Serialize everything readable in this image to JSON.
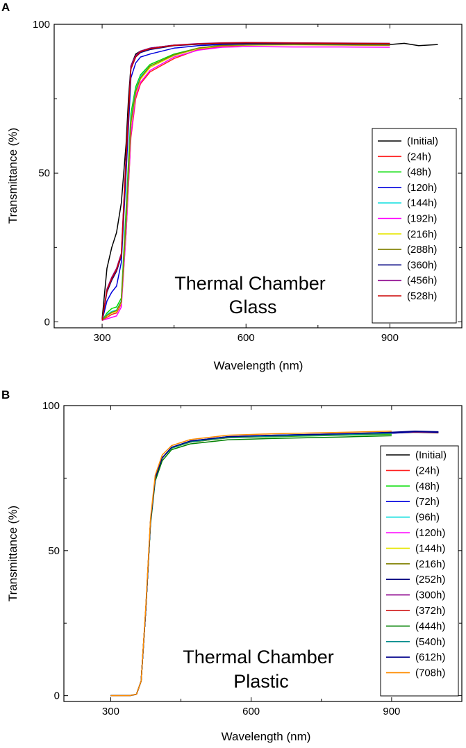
{
  "chart_data": [
    {
      "panel": "A",
      "type": "line",
      "xlabel": "Wavelength (nm)",
      "ylabel": "Transmittance (%)",
      "xlim": [
        200,
        1050
      ],
      "ylim": [
        -2,
        100
      ],
      "xticks": [
        300,
        600,
        900
      ],
      "yticks": [
        0,
        50,
        100
      ],
      "annotation": [
        "Thermal Chamber",
        "Glass"
      ],
      "legend_position": "right",
      "series": [
        {
          "name": "(Initial)",
          "color": "#000000",
          "values_x": [
            300,
            310,
            320,
            330,
            340,
            350,
            355,
            360,
            370,
            380,
            400,
            450,
            500,
            550,
            600,
            700,
            800,
            900,
            930,
            960,
            1000
          ],
          "values_y": [
            1,
            18,
            25,
            30,
            40,
            60,
            75,
            86,
            90,
            91,
            92,
            93,
            93.3,
            93.5,
            93.5,
            93.4,
            93.3,
            93.2,
            93.6,
            92.8,
            93.2
          ]
        },
        {
          "name": "(24h)",
          "color": "#ff2020",
          "values_x": [
            300,
            310,
            320,
            330,
            340,
            350,
            360,
            370,
            380,
            400,
            450,
            500,
            550,
            600,
            700,
            800,
            900
          ],
          "values_y": [
            0.5,
            1.5,
            2.5,
            3,
            6,
            30,
            62,
            75,
            80,
            84,
            88.5,
            91.5,
            92.5,
            93,
            93.2,
            93.1,
            93
          ]
        },
        {
          "name": "(48h)",
          "color": "#00dd00",
          "values_x": [
            300,
            310,
            320,
            330,
            340,
            350,
            360,
            370,
            380,
            400,
            450,
            500,
            550,
            600,
            700,
            800,
            900
          ],
          "values_y": [
            0.5,
            3,
            4.5,
            5,
            8,
            38,
            70,
            79,
            83,
            86.5,
            90,
            92,
            93,
            93.2,
            93.3,
            93.2,
            93.1
          ]
        },
        {
          "name": "(120h)",
          "color": "#0000dd",
          "values_x": [
            300,
            310,
            320,
            330,
            340,
            350,
            360,
            370,
            380,
            400,
            450,
            500,
            550,
            600,
            700,
            800,
            900
          ],
          "values_y": [
            0.5,
            7,
            10,
            12,
            20,
            50,
            82,
            87,
            89,
            90,
            92,
            92.8,
            93.2,
            93.3,
            93.3,
            93.2,
            93.1
          ]
        },
        {
          "name": "(144h)",
          "color": "#00dddd",
          "values_x": [
            300,
            310,
            320,
            330,
            340,
            350,
            360,
            370,
            380,
            400,
            450,
            500,
            550,
            600,
            700,
            800,
            900
          ],
          "values_y": [
            0.5,
            2.5,
            3.5,
            4,
            7,
            35,
            68,
            78,
            82.5,
            86,
            89.5,
            91.8,
            92.8,
            93.1,
            93.2,
            93.1,
            93
          ]
        },
        {
          "name": "(192h)",
          "color": "#ff00ff",
          "values_x": [
            300,
            310,
            320,
            330,
            340,
            350,
            360,
            370,
            380,
            400,
            450,
            500,
            550,
            600,
            700,
            800,
            900
          ],
          "values_y": [
            0.5,
            1,
            1.5,
            2,
            5,
            30,
            63,
            76,
            80.5,
            84.5,
            89,
            91.3,
            92.3,
            92.5,
            92.4,
            92.4,
            92.3
          ]
        },
        {
          "name": "(216h)",
          "color": "#e6e600",
          "values_x": [
            300,
            310,
            320,
            330,
            340,
            350,
            360,
            370,
            380,
            400,
            450,
            500,
            550,
            600,
            700,
            800,
            900
          ],
          "values_y": [
            0.5,
            2,
            3,
            3.5,
            6.5,
            33,
            66,
            77,
            81.5,
            85.5,
            89.5,
            91.8,
            92.8,
            93,
            93.1,
            93,
            92.9
          ]
        },
        {
          "name": "(288h)",
          "color": "#808000",
          "values_x": [
            300,
            310,
            320,
            330,
            340,
            350,
            360,
            370,
            380,
            400,
            450,
            500,
            550,
            600,
            700,
            800,
            900
          ],
          "values_y": [
            0.5,
            2.2,
            3.2,
            3.8,
            6.8,
            34,
            67,
            77.5,
            82,
            86,
            89.7,
            92,
            92.9,
            93.1,
            93.2,
            93.1,
            93
          ]
        },
        {
          "name": "(360h)",
          "color": "#000080",
          "values_x": [
            300,
            310,
            320,
            330,
            340,
            350,
            360,
            370,
            380,
            400,
            450,
            500,
            550,
            600,
            700,
            800,
            900
          ],
          "values_y": [
            0.5,
            10,
            14,
            17,
            22,
            55,
            85,
            89,
            90.5,
            91.5,
            92.8,
            93.3,
            93.6,
            93.7,
            93.6,
            93.5,
            93.4
          ]
        },
        {
          "name": "(456h)",
          "color": "#8b008b",
          "values_x": [
            300,
            310,
            320,
            330,
            340,
            350,
            360,
            370,
            380,
            400,
            450,
            500,
            550,
            600,
            700,
            800,
            900
          ],
          "values_y": [
            0.5,
            11,
            15,
            18,
            23,
            56,
            86,
            89.5,
            91,
            92,
            93,
            93.5,
            93.8,
            93.9,
            93.8,
            93.7,
            93.6
          ]
        },
        {
          "name": "(528h)",
          "color": "#cc0000",
          "values_x": [
            300,
            310,
            320,
            330,
            340,
            350,
            360,
            370,
            380,
            400,
            450,
            500,
            550,
            600,
            700,
            800,
            900
          ],
          "values_y": [
            0.5,
            10.5,
            14.5,
            17.5,
            22.5,
            55,
            85,
            89,
            90.8,
            91.8,
            92.9,
            93.4,
            93.7,
            93.8,
            93.7,
            93.6,
            93.5
          ]
        }
      ]
    },
    {
      "panel": "B",
      "type": "line",
      "xlabel": "Wavelength (nm)",
      "ylabel": "Transmittance (%)",
      "xlim": [
        200,
        1050
      ],
      "ylim": [
        -2,
        100
      ],
      "xticks": [
        300,
        600,
        900
      ],
      "yticks": [
        0,
        50,
        100
      ],
      "annotation": [
        "Thermal Chamber",
        "Plastic"
      ],
      "legend_position": "right",
      "series": [
        {
          "name": "(Initial)",
          "color": "#000000",
          "values_x": [
            300,
            340,
            355,
            365,
            375,
            385,
            395,
            410,
            430,
            470,
            550,
            650,
            800,
            900,
            950,
            1000
          ],
          "values_y": [
            0,
            0,
            0.5,
            5,
            30,
            60,
            75,
            82,
            85.5,
            87.5,
            89,
            89.5,
            90,
            90.5,
            90.8,
            90.6
          ]
        },
        {
          "name": "(24h)",
          "color": "#ff2020",
          "values_x": [
            300,
            340,
            355,
            365,
            375,
            385,
            395,
            410,
            430,
            470,
            550,
            650,
            800,
            900,
            950,
            1000
          ],
          "values_y": [
            0,
            0,
            0.5,
            5,
            30,
            60,
            75,
            82,
            85.5,
            87.7,
            89.2,
            89.7,
            90.2,
            90.6,
            90.9,
            90.7
          ]
        },
        {
          "name": "(48h)",
          "color": "#00dd00",
          "values_x": [
            300,
            340,
            355,
            365,
            375,
            385,
            395,
            410,
            430,
            470,
            550,
            650,
            800,
            900
          ],
          "values_y": [
            0,
            0,
            0.5,
            5,
            30,
            60,
            75,
            82,
            85.3,
            87.4,
            88.9,
            89.3,
            89.8,
            90.1
          ]
        },
        {
          "name": "(72h)",
          "color": "#0000dd",
          "values_x": [
            300,
            340,
            355,
            365,
            375,
            385,
            395,
            410,
            430,
            470,
            550,
            650,
            800,
            900,
            950,
            1000
          ],
          "values_y": [
            0,
            0,
            0.5,
            5,
            30,
            60,
            75,
            82,
            85.5,
            87.6,
            89.1,
            89.6,
            90.1,
            90.5,
            91,
            90.8
          ]
        },
        {
          "name": "(96h)",
          "color": "#00dddd",
          "values_x": [
            300,
            340,
            355,
            365,
            375,
            385,
            395,
            410,
            430,
            470,
            550,
            650,
            800,
            900
          ],
          "values_y": [
            0,
            0,
            0.5,
            5,
            30,
            60,
            75,
            82,
            85.4,
            87.5,
            89,
            89.4,
            89.9,
            90.3
          ]
        },
        {
          "name": "(120h)",
          "color": "#ff00ff",
          "values_x": [
            300,
            340,
            355,
            365,
            375,
            385,
            395,
            410,
            430,
            470,
            550,
            650,
            800,
            900
          ],
          "values_y": [
            0,
            0,
            0.5,
            5,
            30,
            60,
            75,
            82,
            85.4,
            87.5,
            89,
            89.5,
            90,
            90.4
          ]
        },
        {
          "name": "(144h)",
          "color": "#e6e600",
          "values_x": [
            300,
            340,
            355,
            365,
            375,
            385,
            395,
            410,
            430,
            470,
            550,
            650,
            800,
            900
          ],
          "values_y": [
            0,
            0,
            0.5,
            5,
            30,
            60,
            75,
            82,
            85.5,
            87.6,
            89.1,
            89.6,
            90.1,
            90.5
          ]
        },
        {
          "name": "(216h)",
          "color": "#808000",
          "values_x": [
            300,
            340,
            355,
            365,
            375,
            385,
            395,
            410,
            430,
            470,
            550,
            650,
            800,
            900
          ],
          "values_y": [
            0,
            0,
            0.5,
            5,
            30,
            60,
            75,
            82,
            85.4,
            87.4,
            88.9,
            89.4,
            89.9,
            90.3
          ]
        },
        {
          "name": "(252h)",
          "color": "#000080",
          "values_x": [
            300,
            340,
            355,
            365,
            375,
            385,
            395,
            410,
            430,
            470,
            550,
            650,
            800,
            900,
            950,
            1000
          ],
          "values_y": [
            0,
            0,
            0.5,
            5,
            30,
            60,
            75,
            82,
            85.6,
            87.8,
            89.3,
            89.8,
            90.3,
            90.7,
            91.1,
            90.9
          ]
        },
        {
          "name": "(300h)",
          "color": "#8b008b",
          "values_x": [
            300,
            340,
            355,
            365,
            375,
            385,
            395,
            410,
            430,
            470,
            550,
            650,
            800,
            900
          ],
          "values_y": [
            0,
            0,
            0.5,
            5,
            30,
            60,
            75,
            82,
            85.5,
            87.7,
            89.2,
            89.7,
            90.2,
            90.6
          ]
        },
        {
          "name": "(372h)",
          "color": "#cc0000",
          "values_x": [
            300,
            340,
            355,
            365,
            375,
            385,
            395,
            410,
            430,
            470,
            550,
            650,
            800,
            900
          ],
          "values_y": [
            0,
            0,
            0.5,
            5,
            30,
            60,
            75,
            82,
            85.5,
            87.7,
            89.2,
            89.7,
            90.2,
            90.6
          ]
        },
        {
          "name": "(444h)",
          "color": "#008000",
          "values_x": [
            300,
            340,
            355,
            365,
            375,
            385,
            395,
            410,
            430,
            470,
            550,
            650,
            800,
            900
          ],
          "values_y": [
            0,
            0,
            0.5,
            5,
            30,
            59,
            74,
            81,
            84.8,
            86.8,
            88.2,
            88.7,
            89.2,
            89.6
          ]
        },
        {
          "name": "(540h)",
          "color": "#008b8b",
          "values_x": [
            300,
            340,
            355,
            365,
            375,
            385,
            395,
            410,
            430,
            470,
            550,
            650,
            800,
            900
          ],
          "values_y": [
            0,
            0,
            0.5,
            5,
            30,
            60,
            75,
            82,
            85.4,
            87.5,
            89,
            89.5,
            90,
            90.4
          ]
        },
        {
          "name": "(612h)",
          "color": "#00008b",
          "values_x": [
            300,
            340,
            355,
            365,
            375,
            385,
            395,
            410,
            430,
            470,
            550,
            650,
            800,
            900,
            950,
            1000
          ],
          "values_y": [
            0,
            0,
            0.5,
            5,
            30,
            60,
            75,
            82,
            85.6,
            87.8,
            89.3,
            89.8,
            90.3,
            90.8,
            91.2,
            91
          ]
        },
        {
          "name": "(708h)",
          "color": "#ff8c00",
          "values_x": [
            300,
            340,
            355,
            365,
            375,
            385,
            395,
            410,
            430,
            470,
            550,
            650,
            800,
            900
          ],
          "values_y": [
            0,
            0,
            0.5,
            5,
            31,
            61,
            76,
            83,
            86.2,
            88.3,
            89.8,
            90.3,
            90.8,
            91.2
          ]
        }
      ]
    }
  ]
}
